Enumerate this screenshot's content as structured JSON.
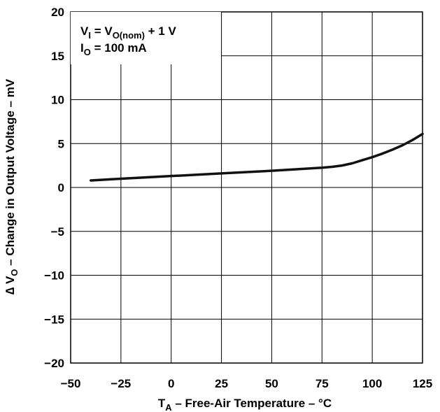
{
  "chart_data": {
    "type": "line",
    "xlim": [
      -50,
      125
    ],
    "ylim": [
      -20,
      20
    ],
    "x_ticks": [
      "−50",
      "−25",
      "0",
      "25",
      "50",
      "75",
      "100",
      "125"
    ],
    "y_ticks": [
      "20",
      "15",
      "10",
      "5",
      "0",
      "−5",
      "−10",
      "−15",
      "−20"
    ],
    "grid": true,
    "xlabel": {
      "main": "T",
      "sub": "A",
      "rest": " – Free-Air Temperature – °C"
    },
    "ylabel": {
      "pre": "∆ V",
      "sub": "O",
      "rest": " – Change in Output Voltage – mV"
    },
    "annotation": {
      "line1": {
        "a": "V",
        "a_sub": "I",
        "b": " = V",
        "b_sub": "O(nom)",
        "c": " + 1 V"
      },
      "line2": {
        "a": "I",
        "a_sub": "O",
        "b": " = 100 mA"
      }
    },
    "series": [
      {
        "color": "#111111",
        "x": [
          -40,
          -25,
          0,
          25,
          50,
          75,
          80,
          85,
          90,
          95,
          100,
          105,
          110,
          115,
          120,
          125
        ],
        "y": [
          0.8,
          1.0,
          1.3,
          1.6,
          1.9,
          2.25,
          2.35,
          2.5,
          2.75,
          3.1,
          3.45,
          3.85,
          4.3,
          4.8,
          5.4,
          6.1
        ]
      }
    ]
  }
}
